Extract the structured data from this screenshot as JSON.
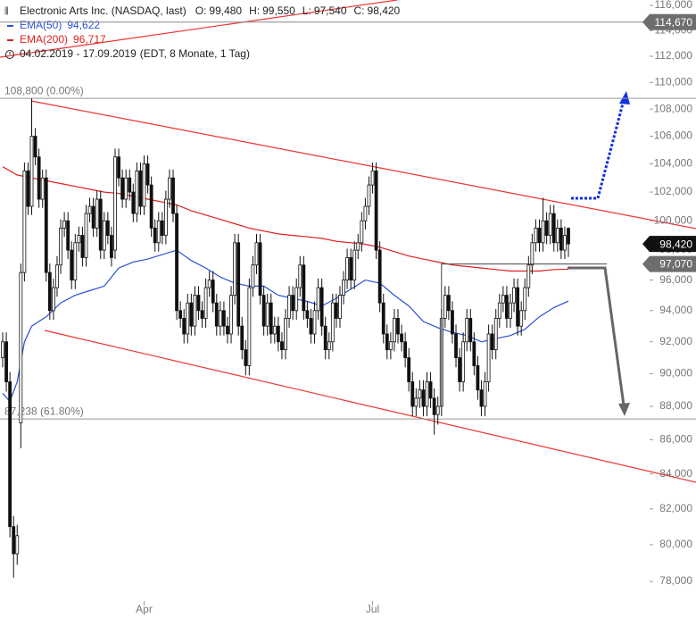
{
  "chart_data": {
    "type": "candlestick",
    "title": "Electronic Arts Inc. (NASDAQ, last)",
    "quote": [
      {
        "label": "O:",
        "value": "99,480"
      },
      {
        "label": "H:",
        "value": "99,550"
      },
      {
        "label": "L:",
        "value": "97,540"
      },
      {
        "label": "C:",
        "value": "98,420"
      }
    ],
    "period": "04.02.2019 - 17.09.2019",
    "period_note": "(EDT, 8 Monate, 1 Tag)",
    "log_scale": true,
    "ylim": [
      76.06,
      116.43
    ],
    "xlim": [
      -0.74,
      171.5
    ],
    "yticks": [
      {
        "value": 78,
        "label": "78,000"
      },
      {
        "value": 80,
        "label": "80,000"
      },
      {
        "value": 82,
        "label": "82,000"
      },
      {
        "value": 84,
        "label": "84,000"
      },
      {
        "value": 86,
        "label": "86,000"
      },
      {
        "value": 88,
        "label": "88,000"
      },
      {
        "value": 90,
        "label": "90,000"
      },
      {
        "value": 92,
        "label": "92,000"
      },
      {
        "value": 94,
        "label": "94,000"
      },
      {
        "value": 96,
        "label": "96,000"
      },
      {
        "value": 98,
        "label": "98,000"
      },
      {
        "value": 100,
        "label": "100,000"
      },
      {
        "value": 102,
        "label": "102,000"
      },
      {
        "value": 104,
        "label": "104,000"
      },
      {
        "value": 106,
        "label": "106,000"
      },
      {
        "value": 108,
        "label": "108,000"
      },
      {
        "value": 110,
        "label": "110,000"
      },
      {
        "value": 112,
        "label": "112,000"
      },
      {
        "value": 114,
        "label": "114,000"
      },
      {
        "value": 116,
        "label": "116,000"
      }
    ],
    "xticks": [
      {
        "value": 39,
        "label": "Apr"
      },
      {
        "value": 102,
        "label": "Jul"
      }
    ],
    "up_color": "#ffffff",
    "down_color": "#111111",
    "candles": {
      "open": [
        91.0,
        92.0,
        89.5,
        81.0,
        79.5,
        87.0,
        96.5,
        103.5,
        101.0,
        106.0,
        104.5,
        101.5,
        103.0,
        96.5,
        94.0,
        95.5,
        97.0,
        99.5,
        100.0,
        98.0,
        96.0,
        98.5,
        99.0,
        97.5,
        100.5,
        101.0,
        99.5,
        101.5,
        98.0,
        100.0,
        99.0,
        98.0,
        104.5,
        103.0,
        101.5,
        103.0,
        102.0,
        100.5,
        103.5,
        101.0,
        104.0,
        102.5,
        99.5,
        98.5,
        100.0,
        99.0,
        101.5,
        103.0,
        100.5,
        94.0,
        93.5,
        92.5,
        94.5,
        93.0,
        95.0,
        94.0,
        93.5,
        95.5,
        96.0,
        94.5,
        93.0,
        94.0,
        93.0,
        92.5,
        95.0,
        98.5,
        93.0,
        91.5,
        90.5,
        95.5,
        97.0,
        98.5,
        95.0,
        93.0,
        94.5,
        92.5,
        93.0,
        92.0,
        91.5,
        93.5,
        95.0,
        94.0,
        95.5,
        97.0,
        94.0,
        93.5,
        92.5,
        94.0,
        95.5,
        93.0,
        91.5,
        92.0,
        94.5,
        93.5,
        95.0,
        96.0,
        97.5,
        96.0,
        98.0,
        98.5,
        100.0,
        101.0,
        102.5,
        103.5,
        98.0,
        94.5,
        92.5,
        91.5,
        92.0,
        93.5,
        92.5,
        92.0,
        91.0,
        89.5,
        88.0,
        88.5,
        89.0,
        88.0,
        89.5,
        88.5,
        87.5,
        88.0,
        93.5,
        95.0,
        94.0,
        92.5,
        91.0,
        89.5,
        92.0,
        93.5,
        92.0,
        90.5,
        89.0,
        88.0,
        89.5,
        92.5,
        91.5,
        93.5,
        94.5,
        95.0,
        93.5,
        94.5,
        95.5,
        93.0,
        94.0,
        95.5,
        97.0,
        98.5,
        99.5,
        98.5,
        100.0,
        99.0,
        100.5,
        98.5,
        99.5,
        98.0,
        99.48
      ],
      "high": [
        92.6,
        92.6,
        90.1,
        81.6,
        81.1,
        97.1,
        104.1,
        104.1,
        108.8,
        106.6,
        105.1,
        103.6,
        103.6,
        97.1,
        96.1,
        97.6,
        100.1,
        100.6,
        100.6,
        98.6,
        99.1,
        99.6,
        99.6,
        101.1,
        101.6,
        101.6,
        102.1,
        102.1,
        100.6,
        100.6,
        99.6,
        105.1,
        105.1,
        103.6,
        103.6,
        103.6,
        102.6,
        104.1,
        104.1,
        104.6,
        104.6,
        103.1,
        100.1,
        100.6,
        100.6,
        102.1,
        103.6,
        103.6,
        101.1,
        94.6,
        94.1,
        95.1,
        95.1,
        95.6,
        95.6,
        94.6,
        96.1,
        96.6,
        96.6,
        95.1,
        94.6,
        94.6,
        93.6,
        95.6,
        99.1,
        99.1,
        93.6,
        92.1,
        96.1,
        97.6,
        99.1,
        99.1,
        95.6,
        95.1,
        95.1,
        93.6,
        93.6,
        92.6,
        94.1,
        95.6,
        95.6,
        96.1,
        97.6,
        97.6,
        94.6,
        94.1,
        94.6,
        96.1,
        96.1,
        93.6,
        92.6,
        95.1,
        95.1,
        95.6,
        96.6,
        98.1,
        98.1,
        98.6,
        99.1,
        100.6,
        101.6,
        103.1,
        104.1,
        104.1,
        98.6,
        95.1,
        93.1,
        92.6,
        94.1,
        94.1,
        93.1,
        92.6,
        91.6,
        90.1,
        89.1,
        89.6,
        89.6,
        90.1,
        90.1,
        89.1,
        88.6,
        94.1,
        95.6,
        95.6,
        94.6,
        93.1,
        91.6,
        92.6,
        94.1,
        94.1,
        92.6,
        91.1,
        89.6,
        90.1,
        93.1,
        93.1,
        94.1,
        95.1,
        95.6,
        95.6,
        95.1,
        96.1,
        96.1,
        94.6,
        96.1,
        97.6,
        99.1,
        100.1,
        100.1,
        101.6,
        100.6,
        101.1,
        101.1,
        100.1,
        100.1,
        99.6,
        99.55
      ],
      "low": [
        90.4,
        88.9,
        80.4,
        78.2,
        78.9,
        85.5,
        95.9,
        100.4,
        100.4,
        103.9,
        100.9,
        100.9,
        95.9,
        93.4,
        93.4,
        94.9,
        96.4,
        98.9,
        97.4,
        95.4,
        95.4,
        97.9,
        96.9,
        96.9,
        99.9,
        98.9,
        98.9,
        97.4,
        97.4,
        98.4,
        96.9,
        97.4,
        102.4,
        100.9,
        100.9,
        101.4,
        99.9,
        99.9,
        100.4,
        100.4,
        101.9,
        98.9,
        97.9,
        97.9,
        98.4,
        98.4,
        100.9,
        99.9,
        93.4,
        92.9,
        91.9,
        91.9,
        92.4,
        92.4,
        93.4,
        92.9,
        92.9,
        94.9,
        93.9,
        92.4,
        92.4,
        92.4,
        91.9,
        91.9,
        94.4,
        92.4,
        90.9,
        89.9,
        89.9,
        94.9,
        96.4,
        94.4,
        92.4,
        92.4,
        91.9,
        91.9,
        91.4,
        90.9,
        90.9,
        92.9,
        93.4,
        93.4,
        94.9,
        93.4,
        92.9,
        91.9,
        91.9,
        93.4,
        92.4,
        90.9,
        90.9,
        91.4,
        92.9,
        92.9,
        94.4,
        95.4,
        95.4,
        95.4,
        97.4,
        97.9,
        99.4,
        100.4,
        101.9,
        97.4,
        93.9,
        91.9,
        90.9,
        90.9,
        91.4,
        91.9,
        91.4,
        90.4,
        88.9,
        87.4,
        87.4,
        87.9,
        87.4,
        87.4,
        87.9,
        86.3,
        86.9,
        87.4,
        92.9,
        93.4,
        91.9,
        90.4,
        88.9,
        88.9,
        91.4,
        91.4,
        89.9,
        88.4,
        87.4,
        87.4,
        88.9,
        90.9,
        90.9,
        92.9,
        93.9,
        92.9,
        92.9,
        93.9,
        92.4,
        92.4,
        93.4,
        94.9,
        96.4,
        97.9,
        97.9,
        97.9,
        98.4,
        98.4,
        97.9,
        97.9,
        97.4,
        97.4,
        97.54
      ],
      "close": [
        92.0,
        89.5,
        81.0,
        79.5,
        80.5,
        96.5,
        103.5,
        101.0,
        106.0,
        104.5,
        101.5,
        103.0,
        96.5,
        94.0,
        95.5,
        97.0,
        99.5,
        100.0,
        98.0,
        96.0,
        98.5,
        99.0,
        97.5,
        100.5,
        101.0,
        99.5,
        101.5,
        98.0,
        100.0,
        99.0,
        97.5,
        104.5,
        103.0,
        101.5,
        103.0,
        102.0,
        100.5,
        103.5,
        101.0,
        104.0,
        102.5,
        99.5,
        98.5,
        100.0,
        99.0,
        101.5,
        103.0,
        100.5,
        94.0,
        93.5,
        92.5,
        94.5,
        93.0,
        95.0,
        94.0,
        93.5,
        95.5,
        96.0,
        94.5,
        93.0,
        94.0,
        93.0,
        92.5,
        95.0,
        98.5,
        93.0,
        91.5,
        90.5,
        95.5,
        97.0,
        98.5,
        95.0,
        93.0,
        94.5,
        92.5,
        93.0,
        92.0,
        91.5,
        93.5,
        95.0,
        94.0,
        95.5,
        97.0,
        94.0,
        93.5,
        92.5,
        94.0,
        95.5,
        93.0,
        91.5,
        92.0,
        94.5,
        93.5,
        95.0,
        96.0,
        97.5,
        96.0,
        98.0,
        98.5,
        100.0,
        101.0,
        102.5,
        103.5,
        98.0,
        94.5,
        92.5,
        91.5,
        92.0,
        93.5,
        92.5,
        92.0,
        91.0,
        89.5,
        88.0,
        88.5,
        89.0,
        88.0,
        89.5,
        88.5,
        87.5,
        88.0,
        93.5,
        95.0,
        94.0,
        92.5,
        91.0,
        89.5,
        92.0,
        93.5,
        92.0,
        90.5,
        89.0,
        88.0,
        89.5,
        92.5,
        91.5,
        93.5,
        94.5,
        95.0,
        93.5,
        94.5,
        95.5,
        93.0,
        94.0,
        95.5,
        97.0,
        98.5,
        99.5,
        98.5,
        100.0,
        99.0,
        100.5,
        98.5,
        99.5,
        98.0,
        99.0,
        98.42
      ]
    },
    "series": [
      {
        "name": "EMA(50)",
        "last_label": "94,622",
        "color": "#2a4fd6",
        "x": [
          0,
          2,
          4,
          6,
          8,
          12,
          16,
          20,
          24,
          28,
          32,
          36,
          40,
          44,
          48,
          52,
          56,
          60,
          64,
          68,
          72,
          76,
          80,
          84,
          88,
          92,
          96,
          100,
          104,
          108,
          112,
          116,
          120,
          124,
          128,
          132,
          136,
          140,
          144,
          148,
          152,
          156
        ],
        "values": [
          88.8,
          88.3,
          89.5,
          92.0,
          93.0,
          93.6,
          94.5,
          95.0,
          95.3,
          95.6,
          96.8,
          97.2,
          97.4,
          97.7,
          98.0,
          97.3,
          96.8,
          96.2,
          95.8,
          95.6,
          95.6,
          95.0,
          94.8,
          94.6,
          94.3,
          94.8,
          95.4,
          96.0,
          95.8,
          95.0,
          94.3,
          93.3,
          92.9,
          92.6,
          92.4,
          92.0,
          92.2,
          92.4,
          92.8,
          93.6,
          94.2,
          94.62
        ]
      },
      {
        "name": "EMA(200)",
        "last_label": "96,717",
        "color": "#e02020",
        "x": [
          0,
          4,
          8,
          12,
          16,
          20,
          24,
          28,
          32,
          36,
          40,
          44,
          48,
          52,
          56,
          60,
          64,
          68,
          72,
          76,
          80,
          84,
          88,
          92,
          96,
          100,
          104,
          108,
          112,
          116,
          120,
          124,
          128,
          132,
          136,
          140,
          144,
          148,
          152,
          156
        ],
        "values": [
          103.8,
          103.2,
          103.0,
          102.8,
          102.6,
          102.4,
          102.2,
          102.0,
          101.9,
          101.7,
          101.5,
          101.3,
          101.1,
          100.7,
          100.4,
          100.1,
          99.8,
          99.5,
          99.3,
          99.1,
          99.0,
          98.9,
          98.8,
          98.6,
          98.5,
          98.4,
          98.2,
          97.9,
          97.6,
          97.4,
          97.2,
          97.0,
          96.9,
          96.8,
          96.7,
          96.6,
          96.6,
          96.6,
          96.7,
          96.72
        ]
      }
    ],
    "levels": [
      {
        "value": 108.8,
        "label": "108,800 (0.00%)"
      },
      {
        "value": 87.238,
        "label": "87,238 (61.80%)"
      }
    ],
    "tags": [
      {
        "value": 114.67,
        "label": "114,670",
        "color": "#6e6e6e"
      },
      {
        "value": 98.42,
        "label": "98,420",
        "color": "#111111"
      },
      {
        "value": 97.07,
        "label": "97,070",
        "color": "#6e6e6e"
      }
    ]
  }
}
